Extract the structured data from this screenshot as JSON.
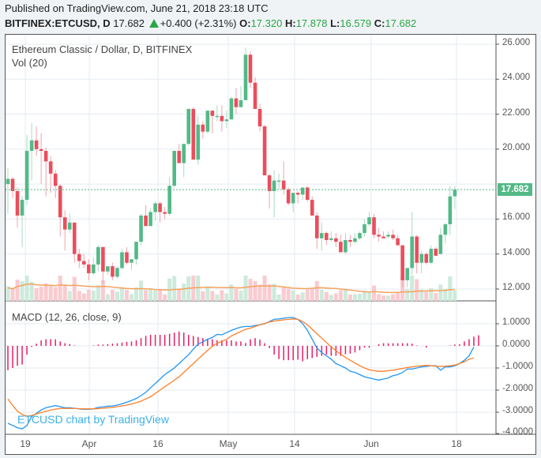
{
  "header": {
    "published": "Published on TradingView.com, June 21, 2018 23:18 UTC",
    "symbol": "BITFINEX:ETCUSD, D",
    "last": "17.682",
    "change": "+0.400 (+2.31%)",
    "o_label": "O:",
    "o": "17.320",
    "h_label": "H:",
    "h": "17.878",
    "l_label": "L:",
    "l": "16.579",
    "c_label": "C:",
    "c": "17.682"
  },
  "main_pane": {
    "title": "Ethereum Classic / Dollar, D, BITFINEX",
    "vol_label": "Vol (20)",
    "price_tag": "17.682",
    "y_ticks": [
      "26.000",
      "24.000",
      "22.000",
      "20.000",
      "18.000",
      "16.000",
      "14.000",
      "12.000"
    ]
  },
  "macd_pane": {
    "title": "MACD (12, 26, close, 9)",
    "y_ticks": [
      "1.0000",
      "0.0000",
      "-1.0000",
      "-2.0000",
      "-3.0000",
      "-4.0000"
    ]
  },
  "x_axis": {
    "ticks": [
      "19",
      "Apr",
      "16",
      "May",
      "14",
      "Jun",
      "18"
    ]
  },
  "watermark": "ETCUSD chart by TradingView",
  "colors": {
    "up": "#53b987",
    "down": "#eb4d5c",
    "macd": "#2196f3",
    "signal": "#ff7f27",
    "hist": "#e91e63",
    "vol_ma": "#f5a25d",
    "grid": "#e3ebf2"
  },
  "chart_data": [
    {
      "type": "candlestick",
      "title": "Ethereum Classic / Dollar, D, BITFINEX",
      "ylim": [
        11.5,
        26.3
      ],
      "y_ticks": [
        12,
        14,
        16,
        18,
        20,
        22,
        24,
        26
      ],
      "x_tick_labels": [
        "19",
        "Apr",
        "16",
        "May",
        "14",
        "Jun",
        "18"
      ],
      "last_price": 17.682,
      "ohlc": [
        [
          18.0,
          18.9,
          16.3,
          18.3
        ],
        [
          18.3,
          18.4,
          17.2,
          17.6
        ],
        [
          17.6,
          17.8,
          15.5,
          16.2
        ],
        [
          16.2,
          17.3,
          14.4,
          17.1
        ],
        [
          17.1,
          20.8,
          16.8,
          19.9
        ],
        [
          19.9,
          21.5,
          18.2,
          20.5
        ],
        [
          20.5,
          21.3,
          19.6,
          20.0
        ],
        [
          20.0,
          20.9,
          18.0,
          19.9
        ],
        [
          19.9,
          20.1,
          17.3,
          19.3
        ],
        [
          19.3,
          19.6,
          17.5,
          18.6
        ],
        [
          18.6,
          18.8,
          17.2,
          17.9
        ],
        [
          17.9,
          18.0,
          15.0,
          16.1
        ],
        [
          16.1,
          16.5,
          14.2,
          15.4
        ],
        [
          15.4,
          16.3,
          15.2,
          15.8
        ],
        [
          15.8,
          15.8,
          13.5,
          14.0
        ],
        [
          14.0,
          14.3,
          13.2,
          13.6
        ],
        [
          13.6,
          14.0,
          13.2,
          13.4
        ],
        [
          13.4,
          13.7,
          12.5,
          12.9
        ],
        [
          12.9,
          13.8,
          12.8,
          13.4
        ],
        [
          13.4,
          14.5,
          13.0,
          14.4
        ],
        [
          14.4,
          14.4,
          12.3,
          13.0
        ],
        [
          13.0,
          13.2,
          12.8,
          13.3
        ],
        [
          13.3,
          13.5,
          12.5,
          12.7
        ],
        [
          12.7,
          13.3,
          12.6,
          13.2
        ],
        [
          13.2,
          14.3,
          13.1,
          14.1
        ],
        [
          14.1,
          14.4,
          13.4,
          13.5
        ],
        [
          13.5,
          13.7,
          13.1,
          13.7
        ],
        [
          13.7,
          14.3,
          13.4,
          14.7
        ],
        [
          14.7,
          16.3,
          14.5,
          16.2
        ],
        [
          16.2,
          16.8,
          15.8,
          15.6
        ],
        [
          15.6,
          16.6,
          15.6,
          16.4
        ],
        [
          16.4,
          17.0,
          15.9,
          16.9
        ],
        [
          16.9,
          17.0,
          15.8,
          16.4
        ],
        [
          16.4,
          16.7,
          16.0,
          16.3
        ],
        [
          16.3,
          18.4,
          16.2,
          17.9
        ],
        [
          17.9,
          19.9,
          17.8,
          19.9
        ],
        [
          19.9,
          20.3,
          19.3,
          19.2
        ],
        [
          19.2,
          20.2,
          18.4,
          20.3
        ],
        [
          20.3,
          22.2,
          20.2,
          22.3
        ],
        [
          22.3,
          22.4,
          19.5,
          19.4
        ],
        [
          19.4,
          21.9,
          19.1,
          21.4
        ],
        [
          21.4,
          21.6,
          20.6,
          21.0
        ],
        [
          21.0,
          21.7,
          20.9,
          22.2
        ],
        [
          22.2,
          22.2,
          20.9,
          21.9
        ],
        [
          21.9,
          22.5,
          21.6,
          21.9
        ],
        [
          21.9,
          22.5,
          21.0,
          21.6
        ],
        [
          21.6,
          22.2,
          21.2,
          21.7
        ],
        [
          21.7,
          23.0,
          21.7,
          22.9
        ],
        [
          22.9,
          23.5,
          22.0,
          22.4
        ],
        [
          22.4,
          23.6,
          22.4,
          22.8
        ],
        [
          22.8,
          25.8,
          22.8,
          25.4
        ],
        [
          25.4,
          25.6,
          23.5,
          23.8
        ],
        [
          23.8,
          24.1,
          22.4,
          22.3
        ],
        [
          22.3,
          22.6,
          21.0,
          21.3
        ],
        [
          21.3,
          21.4,
          18.6,
          18.5
        ],
        [
          18.5,
          18.6,
          16.6,
          17.6
        ],
        [
          17.6,
          18.8,
          16.1,
          18.2
        ],
        [
          18.2,
          18.6,
          17.7,
          18.2
        ],
        [
          18.2,
          19.3,
          17.4,
          17.7
        ],
        [
          17.7,
          17.8,
          16.8,
          16.9
        ],
        [
          16.9,
          17.3,
          16.4,
          17.5
        ],
        [
          17.5,
          17.6,
          16.9,
          17.4
        ],
        [
          17.4,
          17.8,
          17.1,
          17.8
        ],
        [
          17.8,
          17.9,
          17.0,
          17.1
        ],
        [
          17.1,
          17.3,
          16.6,
          16.2
        ],
        [
          16.2,
          16.4,
          14.3,
          14.9
        ],
        [
          14.9,
          15.8,
          14.2,
          15.2
        ],
        [
          15.2,
          15.3,
          14.5,
          14.8
        ],
        [
          14.8,
          15.3,
          14.7,
          14.9
        ],
        [
          14.9,
          15.2,
          14.4,
          14.7
        ],
        [
          14.7,
          15.1,
          14.2,
          14.1
        ],
        [
          14.1,
          15.2,
          14.0,
          14.8
        ],
        [
          14.8,
          15.1,
          14.4,
          14.7
        ],
        [
          14.7,
          15.2,
          14.6,
          14.9
        ],
        [
          14.9,
          15.3,
          14.8,
          15.2
        ],
        [
          15.2,
          16.0,
          15.0,
          15.7
        ],
        [
          15.7,
          16.4,
          15.6,
          16.1
        ],
        [
          16.1,
          16.3,
          14.9,
          15.1
        ],
        [
          15.1,
          15.5,
          14.7,
          15.0
        ],
        [
          15.0,
          15.3,
          14.9,
          14.9
        ],
        [
          15.0,
          15.3,
          14.9,
          15.1
        ],
        [
          15.1,
          15.4,
          14.8,
          14.9
        ],
        [
          14.9,
          15.1,
          14.6,
          14.5
        ],
        [
          14.5,
          14.5,
          12.1,
          12.5
        ],
        [
          12.5,
          13.1,
          12.1,
          13.2
        ],
        [
          13.2,
          16.4,
          12.8,
          15.0
        ],
        [
          15.0,
          15.1,
          12.9,
          13.5
        ],
        [
          13.5,
          14.2,
          12.9,
          14.0
        ],
        [
          14.0,
          14.1,
          13.4,
          13.5
        ],
        [
          13.5,
          14.5,
          13.4,
          14.3
        ],
        [
          14.3,
          14.4,
          13.9,
          13.9
        ],
        [
          14.0,
          15.5,
          14.0,
          15.1
        ],
        [
          15.1,
          15.8,
          14.6,
          15.7
        ],
        [
          15.7,
          17.9,
          15.1,
          17.3
        ],
        [
          17.3,
          17.88,
          16.58,
          17.682
        ]
      ],
      "volume_ma": "Vol (20)"
    },
    {
      "type": "line",
      "title": "MACD (12, 26, close, 9)",
      "ylim": [
        -4.0,
        1.6
      ],
      "series": [
        {
          "name": "MACD",
          "color": "#2196f3",
          "values": [
            -3.5,
            -3.6,
            -3.7,
            -3.75,
            -3.6,
            -3.2,
            -3.05,
            -2.9,
            -2.8,
            -2.75,
            -2.7,
            -2.75,
            -2.8,
            -2.8,
            -2.82,
            -2.85,
            -2.87,
            -2.87,
            -2.85,
            -2.78,
            -2.76,
            -2.73,
            -2.72,
            -2.68,
            -2.62,
            -2.55,
            -2.47,
            -2.38,
            -2.25,
            -2.1,
            -1.9,
            -1.7,
            -1.5,
            -1.3,
            -1.15,
            -1.0,
            -0.8,
            -0.6,
            -0.4,
            -0.15,
            0.08,
            0.18,
            0.3,
            0.38,
            0.52,
            0.5,
            0.6,
            0.7,
            0.78,
            0.85,
            0.88,
            0.88,
            0.92,
            0.95,
            1.0,
            1.1,
            1.2,
            1.22,
            1.25,
            1.28,
            1.28,
            1.2,
            1.0,
            0.7,
            0.3,
            -0.1,
            -0.3,
            -0.45,
            -0.6,
            -0.8,
            -0.9,
            -1.0,
            -1.15,
            -1.2,
            -1.3,
            -1.4,
            -1.45,
            -1.5,
            -1.55,
            -1.5,
            -1.45,
            -1.35,
            -1.3,
            -1.2,
            -1.05,
            -1.05,
            -1.0,
            -0.95,
            -0.93,
            -0.9,
            -0.9,
            -1.1,
            -0.95,
            -0.95,
            -0.9,
            -0.8,
            -0.65,
            -0.45,
            -0.05
          ]
        },
        {
          "name": "Signal",
          "color": "#ff7f27",
          "values": [
            -2.4,
            -2.7,
            -2.95,
            -3.1,
            -3.18,
            -3.15,
            -3.08,
            -3.02,
            -2.96,
            -2.9,
            -2.86,
            -2.83,
            -2.83,
            -2.83,
            -2.83,
            -2.84,
            -2.85,
            -2.85,
            -2.85,
            -2.84,
            -2.82,
            -2.8,
            -2.78,
            -2.75,
            -2.72,
            -2.68,
            -2.63,
            -2.57,
            -2.5,
            -2.4,
            -2.3,
            -2.15,
            -2.0,
            -1.85,
            -1.7,
            -1.55,
            -1.4,
            -1.2,
            -1.0,
            -0.8,
            -0.6,
            -0.4,
            -0.2,
            -0.02,
            0.12,
            0.2,
            0.3,
            0.45,
            0.55,
            0.65,
            0.75,
            0.8,
            0.88,
            0.95,
            1.02,
            1.08,
            1.12,
            1.15,
            1.18,
            1.2,
            1.22,
            1.2,
            1.1,
            0.95,
            0.75,
            0.55,
            0.35,
            0.15,
            -0.05,
            -0.22,
            -0.38,
            -0.52,
            -0.65,
            -0.78,
            -0.9,
            -1.0,
            -1.08,
            -1.12,
            -1.15,
            -1.15,
            -1.12,
            -1.1,
            -1.06,
            -1.02,
            -0.98,
            -0.95,
            -0.92,
            -0.9,
            -0.88,
            -0.9,
            -0.92,
            -0.93,
            -0.92,
            -0.9,
            -0.87,
            -0.8,
            -0.72,
            -0.6,
            -0.55
          ]
        },
        {
          "name": "Histogram",
          "color": "#e91e63",
          "values": [
            -1.1,
            -1.0,
            -0.9,
            -0.85,
            -0.4,
            -0.05,
            0.1,
            0.25,
            0.3,
            0.3,
            0.3,
            0.2,
            0.12,
            0.08,
            0.02,
            0.0,
            0.0,
            0.0,
            0.02,
            0.06,
            0.06,
            0.08,
            0.1,
            0.12,
            0.15,
            0.18,
            0.2,
            0.25,
            0.35,
            0.45,
            0.5,
            0.5,
            0.5,
            0.5,
            0.55,
            0.6,
            0.65,
            0.6,
            0.5,
            0.45,
            0.4,
            0.35,
            0.3,
            0.3,
            0.25,
            0.25,
            0.25,
            0.25,
            0.2,
            0.2,
            0.13,
            0.3,
            0.35,
            0.28,
            0.12,
            -0.1,
            -0.4,
            -0.6,
            -0.65,
            -0.65,
            -0.65,
            -0.62,
            -0.7,
            -0.6,
            -0.55,
            -0.5,
            -0.45,
            -0.4,
            -0.45,
            -0.45,
            -0.45,
            -0.38,
            -0.35,
            -0.3,
            -0.2,
            -0.08,
            -0.08,
            0.0,
            0.08,
            0.12,
            0.12,
            0.12,
            0.12,
            0.12,
            0.12,
            0.1,
            0.02,
            0.0,
            -0.08,
            0.0,
            0.0,
            0.0,
            0.0,
            0.02,
            0.06,
            0.07,
            0.2,
            0.3,
            0.42,
            0.48
          ]
        }
      ],
      "y_ticks": [
        1,
        0,
        -1,
        -2,
        -3,
        -4
      ]
    }
  ]
}
